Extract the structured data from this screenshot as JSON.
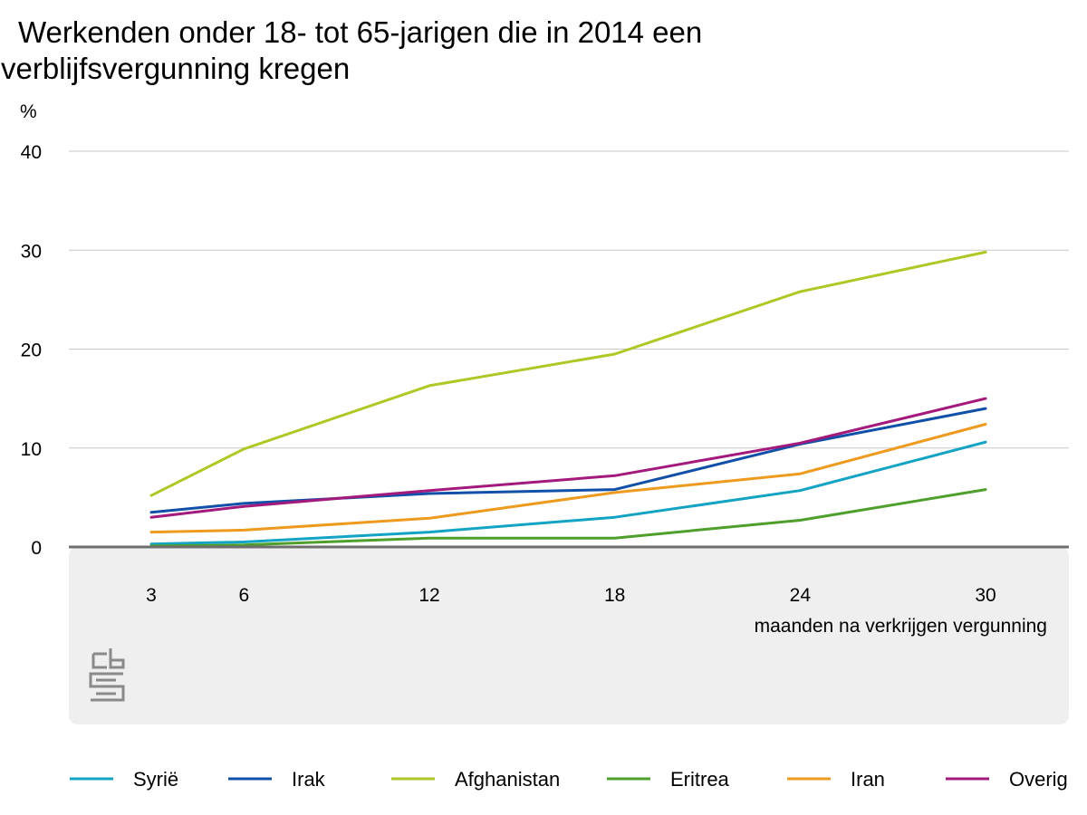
{
  "chart_data": {
    "type": "line",
    "title_lines": [
      "Werkenden onder 18- tot 65-jarigen die in 2014 een",
      "verblijfsvergunning kregen"
    ],
    "ylabel": "%",
    "xlabel": "maanden na verkrijgen vergunning",
    "x": [
      3,
      6,
      12,
      18,
      24,
      30
    ],
    "x_tick_labels": [
      "3",
      "6",
      "12",
      "18",
      "24",
      "30"
    ],
    "y_ticks": [
      0,
      10,
      20,
      30,
      40
    ],
    "y_tick_labels": [
      "0",
      "10",
      "20",
      "30",
      "40"
    ],
    "ylim": [
      0,
      40
    ],
    "grid": true,
    "legend_position": "bottom",
    "series": [
      {
        "name": "Syrië",
        "color": "#13a3c4",
        "values": [
          0.3,
          0.5,
          1.5,
          3.0,
          5.7,
          10.6
        ]
      },
      {
        "name": "Irak",
        "color": "#1150a8",
        "values": [
          3.5,
          4.4,
          5.4,
          5.8,
          10.4,
          14.0
        ]
      },
      {
        "name": "Afghanistan",
        "color": "#acc925",
        "values": [
          5.2,
          9.9,
          16.3,
          19.5,
          25.8,
          29.8
        ]
      },
      {
        "name": "Eritrea",
        "color": "#4e9f2b",
        "values": [
          0.1,
          0.2,
          0.9,
          0.9,
          2.7,
          5.8
        ]
      },
      {
        "name": "Iran",
        "color": "#ee9a1e",
        "values": [
          1.5,
          1.7,
          2.9,
          5.5,
          7.4,
          12.4
        ]
      },
      {
        "name": "Overig",
        "color": "#a3197c",
        "values": [
          3.0,
          4.1,
          5.7,
          7.2,
          10.5,
          15.0
        ]
      }
    ]
  },
  "colors": {
    "grid": "#c8c8c8",
    "zero_line": "#6e6e6e",
    "panel": "#efefef",
    "logo": "#8a8a8a"
  },
  "logo": {
    "icon": "cbs-logo-icon"
  }
}
